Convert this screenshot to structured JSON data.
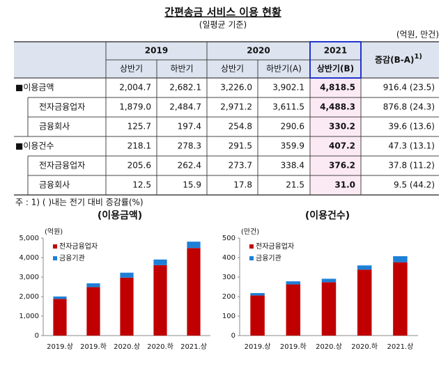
{
  "header": {
    "title": "간편송금 서비스 이용 현황",
    "subtitle": "(일평균 기준)",
    "unit": "(억원, 만건)"
  },
  "table": {
    "years": [
      "2019",
      "2020",
      "2021"
    ],
    "subheads": [
      "상반기",
      "하반기",
      "상반기",
      "하반기(A)",
      "상반기(B)"
    ],
    "change_head": "증감(B-A)",
    "change_mark": "1)",
    "rows": [
      {
        "label": "■이용금액",
        "cells": [
          "2,004.7",
          "2,682.1",
          "3,226.0",
          "3,902.1",
          "4,818.5"
        ],
        "change": "916.4 (23.5)"
      },
      {
        "label": "전자금융업자",
        "cells": [
          "1,879.0",
          "2,484.7",
          "2,971.2",
          "3,611.5",
          "4,488.3"
        ],
        "change": "876.8 (24.3)"
      },
      {
        "label": "금융회사",
        "cells": [
          "125.7",
          "197.4",
          "254.8",
          "290.6",
          "330.2"
        ],
        "change": "39.6 (13.6)"
      },
      {
        "label": "■이용건수",
        "cells": [
          "218.1",
          "278.3",
          "291.5",
          "359.9",
          "407.2"
        ],
        "change": "47.3 (13.1)"
      },
      {
        "label": "전자금융업자",
        "cells": [
          "205.6",
          "262.4",
          "273.7",
          "338.4",
          "376.2"
        ],
        "change": "37.8 (11.2)"
      },
      {
        "label": "금융회사",
        "cells": [
          "12.5",
          "15.9",
          "17.8",
          "21.5",
          "31.0"
        ],
        "change": "9.5 (44.2)"
      }
    ]
  },
  "note": "주 : 1) (   )내는 전기 대비 증감률(%)",
  "chart_data": [
    {
      "type": "bar",
      "stacked": true,
      "title": "(이용금액)",
      "ylabel": "(억원)",
      "categories": [
        "2019.상",
        "2019.하",
        "2020.상",
        "2020.하",
        "2021.상"
      ],
      "series": [
        {
          "name": "전자금융업자",
          "color": "#c00000",
          "values": [
            1879.0,
            2484.7,
            2971.2,
            3611.5,
            4488.3
          ]
        },
        {
          "name": "금융기관",
          "color": "#1e7fd6",
          "values": [
            125.7,
            197.4,
            254.8,
            290.6,
            330.2
          ]
        }
      ],
      "ylim": [
        0,
        5000
      ],
      "yticks": [
        0,
        {
          "value": 1000,
          "label": "1,000"
        },
        {
          "value": 2000,
          "label": "2,000"
        },
        {
          "value": 3000,
          "label": "3,000"
        },
        {
          "value": 4000,
          "label": "4,000"
        },
        {
          "value": 5000,
          "label": "5,000"
        }
      ],
      "legend": "upper left"
    },
    {
      "type": "bar",
      "stacked": true,
      "title": "(이용건수)",
      "ylabel": "(만건)",
      "categories": [
        "2019.상",
        "2019.하",
        "2020.상",
        "2020.하",
        "2021.상"
      ],
      "series": [
        {
          "name": "전자금융업자",
          "color": "#c00000",
          "values": [
            205.6,
            262.4,
            273.7,
            338.4,
            376.2
          ]
        },
        {
          "name": "금융기관",
          "color": "#1e7fd6",
          "values": [
            12.5,
            15.9,
            17.8,
            21.5,
            31.0
          ]
        }
      ],
      "ylim": [
        0,
        500
      ],
      "yticks": [
        0,
        100,
        200,
        300,
        400,
        500
      ],
      "legend": "upper left"
    }
  ]
}
